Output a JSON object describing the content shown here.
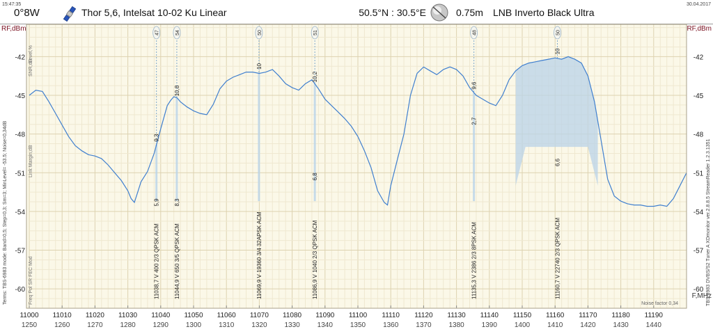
{
  "header": {
    "time": "15:47:35",
    "date": "30.04.2017",
    "position": "0°8W",
    "satellite": "Thor 5,6, Intelsat 10-02 Ku Linear",
    "location": "50.5°N : 30.5°E",
    "dish": "0.75m",
    "lnb": "LNB Inverto Black Ultra"
  },
  "axes": {
    "y_left_label": "RF,dBm",
    "y_right_label": "RF,dBm",
    "x_label": "F,MHz",
    "y_ticks": [
      "-42",
      "-45",
      "-48",
      "-51",
      "-54",
      "-57",
      "-60"
    ],
    "x_ticks_top": [
      "11000",
      "11010",
      "11020",
      "11030",
      "11040",
      "11050",
      "11060",
      "11070",
      "11080",
      "11090",
      "11100",
      "11110",
      "11120",
      "11130",
      "11140",
      "11150",
      "11160",
      "11170",
      "11180",
      "11190"
    ],
    "x_ticks_bottom": [
      "1250",
      "1260",
      "1270",
      "1280",
      "1290",
      "1300",
      "1310",
      "1320",
      "1330",
      "1340",
      "1350",
      "1360",
      "1370",
      "1380",
      "1390",
      "1400",
      "1410",
      "1420",
      "1430",
      "1440"
    ]
  },
  "side_labels": {
    "left_vertical": "Terms: TBS-6983 mode: Band=0,5; Step=0,3; Sm=3; MinLevel= -53.5; Noise=0,34dB",
    "level": "Level,%",
    "snr": "SNR,dB",
    "margin": "Link Margin,dB",
    "fields": "Freq  Pol   SR  FEC  Mod",
    "right_vertical": "TBS 6983 DVBS/S2 Tuner A     XDmonitor ver.2.8.8.5   StreamReader 1.2.3.1351"
  },
  "noise_factor": "Noise factor 0,34",
  "chart_data": {
    "type": "line",
    "x_unit": "MHz",
    "y_unit": "dBm",
    "xlim": [
      11000,
      11200
    ],
    "ylim": [
      -61.5,
      -39.5
    ],
    "series": [
      {
        "x": [
          11000,
          11002,
          11004,
          11006,
          11008,
          11010,
          11012,
          11014,
          11016,
          11018,
          11020,
          11022,
          11024,
          11026,
          11028,
          11030,
          11031,
          11032,
          11033,
          11034,
          11036,
          11038,
          11040,
          11042,
          11043,
          11044,
          11045,
          11046,
          11048,
          11050,
          11052,
          11054,
          11056,
          11058,
          11060,
          11062,
          11064,
          11066,
          11068,
          11070,
          11072,
          11074,
          11076,
          11078,
          11080,
          11082,
          11084,
          11086,
          11088,
          11090,
          11092,
          11094,
          11096,
          11098,
          11100,
          11102,
          11104,
          11106,
          11108,
          11109,
          11110,
          11111,
          11112,
          11114,
          11116,
          11118,
          11120,
          11122,
          11124,
          11126,
          11128,
          11130,
          11132,
          11134,
          11136,
          11138,
          11140,
          11142,
          11144,
          11146,
          11148,
          11150,
          11152,
          11154,
          11156,
          11158,
          11160,
          11162,
          11164,
          11166,
          11168,
          11170,
          11172,
          11174,
          11176,
          11178,
          11180,
          11182,
          11184,
          11186,
          11188,
          11190,
          11192,
          11194,
          11196,
          11198,
          11200
        ],
        "y": [
          -45.0,
          -44.6,
          -44.7,
          -45.5,
          -46.4,
          -47.3,
          -48.2,
          -48.9,
          -49.3,
          -49.6,
          -49.7,
          -49.9,
          -50.4,
          -51.0,
          -51.6,
          -52.4,
          -53.0,
          -53.3,
          -52.5,
          -51.7,
          -50.9,
          -49.5,
          -47.6,
          -45.8,
          -45.4,
          -45.1,
          -45.2,
          -45.5,
          -45.9,
          -46.2,
          -46.4,
          -46.5,
          -45.7,
          -44.5,
          -43.9,
          -43.6,
          -43.4,
          -43.2,
          -43.2,
          -43.3,
          -43.2,
          -43.0,
          -43.5,
          -44.1,
          -44.4,
          -44.6,
          -44.1,
          -43.8,
          -44.5,
          -45.3,
          -45.8,
          -46.3,
          -46.8,
          -47.4,
          -48.2,
          -49.3,
          -50.6,
          -52.4,
          -53.3,
          -53.5,
          -52.0,
          -51.0,
          -50.0,
          -48.0,
          -45.0,
          -43.3,
          -42.8,
          -43.1,
          -43.4,
          -43.0,
          -42.8,
          -43.0,
          -43.5,
          -44.4,
          -45.0,
          -45.3,
          -45.6,
          -45.8,
          -45.0,
          -43.8,
          -43.1,
          -42.7,
          -42.5,
          -42.4,
          -42.3,
          -42.2,
          -42.1,
          -42.2,
          -42.0,
          -42.2,
          -42.5,
          -43.5,
          -45.5,
          -48.5,
          -51.5,
          -52.8,
          -53.2,
          -53.4,
          -53.5,
          -53.5,
          -53.6,
          -53.6,
          -53.5,
          -53.6,
          -53.0,
          -52.0,
          -51.0
        ]
      }
    ],
    "transponders": [
      {
        "freq_label": "11038,7",
        "pol": "V",
        "sr": "400",
        "fec": "2/3",
        "mod": "QPSK",
        "acm": "ACM",
        "level": "47",
        "snr": "9,3",
        "margin": "5,9",
        "x": 11038.7
      },
      {
        "freq_label": "11044,9",
        "pol": "V",
        "sr": "650",
        "fec": "3/5",
        "mod": "QPSK",
        "acm": "ACM",
        "level": "54",
        "snr": "10,8",
        "margin": "8,3",
        "x": 11044.9
      },
      {
        "freq_label": "11069,9",
        "pol": "V",
        "sr": "19360",
        "fec": "3/4",
        "mod": "32APSK",
        "acm": "ACM",
        "level": "50",
        "snr": "10",
        "margin": "",
        "x": 11069.9
      },
      {
        "freq_label": "11086,9",
        "pol": "V",
        "sr": "1040",
        "fec": "2/3",
        "mod": "QPSK",
        "acm": "ACM",
        "level": "51",
        "snr": "10,2",
        "margin": "6,8",
        "x": 11086.9
      },
      {
        "freq_label": "11135,3",
        "pol": "V",
        "sr": "2386",
        "fec": "2/3",
        "mod": "8PSK",
        "acm": "ACM",
        "level": "48",
        "snr": "9,6",
        "margin": "2,7",
        "x": 11135.3
      },
      {
        "freq_label": "11160,7",
        "pol": "V",
        "sr": "22740",
        "fec": "2/3",
        "mod": "QPSK",
        "acm": "ACM",
        "level": "50",
        "snr": "10",
        "margin": "6,6",
        "x": 11160.7
      }
    ],
    "grid": true
  },
  "colors": {
    "plot_bg": "#fbf8e8",
    "grid": "#e4dcc0",
    "curve": "#3f7fcf",
    "fill": "#b9d3e8",
    "axis_label": "#7a1020"
  }
}
